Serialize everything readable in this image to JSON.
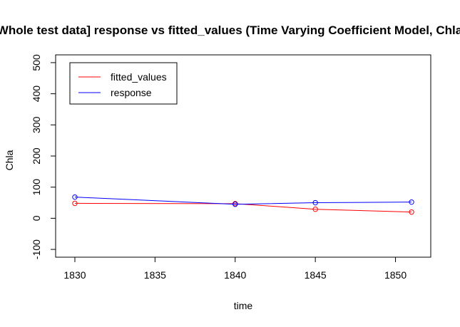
{
  "chart_data": {
    "type": "line",
    "title": "[Whole test data] response vs fitted_values (Time Varying Coefficient Model, Chla)",
    "xlabel": "time",
    "ylabel": "Chla",
    "xlim": [
      1828.8,
      1852.2
    ],
    "ylim": [
      -125,
      525
    ],
    "x_ticks": [
      1830,
      1835,
      1840,
      1845,
      1850
    ],
    "x_tick_labels": [
      "1830",
      "1835",
      "1840",
      "1845",
      "1850"
    ],
    "y_ticks": [
      -100,
      0,
      100,
      200,
      300,
      400,
      500
    ],
    "y_tick_labels": [
      "-100",
      "0",
      "100",
      "200",
      "300",
      "400",
      "500"
    ],
    "x": [
      1830,
      1840,
      1845,
      1851
    ],
    "series": [
      {
        "name": "fitted_values",
        "color": "#ff0000",
        "values": [
          48,
          47,
          29,
          20
        ]
      },
      {
        "name": "response",
        "color": "#0000ff",
        "values": [
          68,
          45,
          50,
          52
        ]
      }
    ],
    "legend": {
      "position": "top-left",
      "entries": [
        "fitted_values",
        "response"
      ]
    },
    "grid": false
  }
}
